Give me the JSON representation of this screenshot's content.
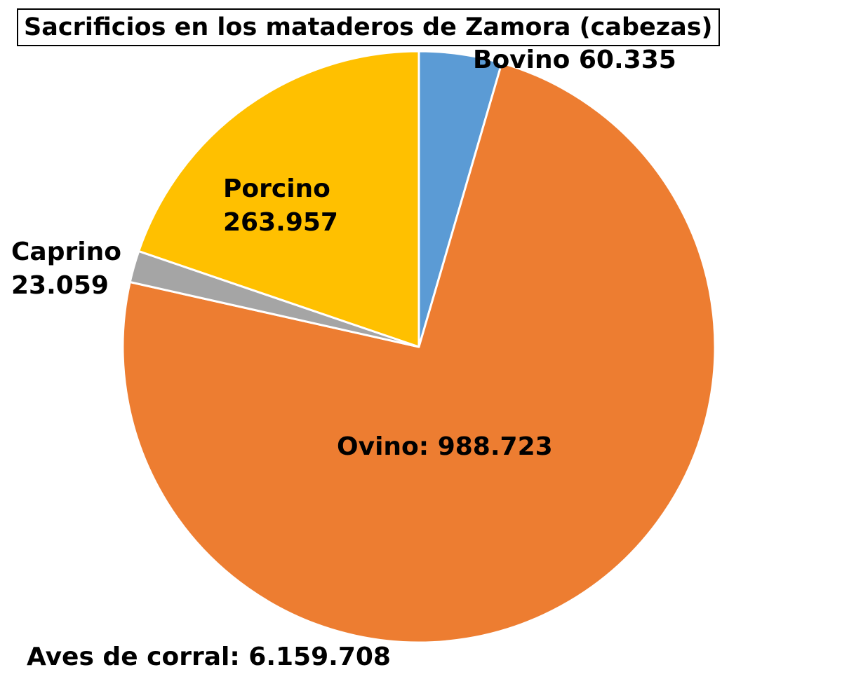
{
  "chart_data": {
    "type": "pie",
    "title": "Sacrificios en los mataderos de Zamora (cabezas)",
    "slices": [
      {
        "name": "Bovino",
        "display_name": "Bovino",
        "value_label": "60.335",
        "value": 60335,
        "color": "#5B9BD5",
        "label_text": "Bovino 60.335"
      },
      {
        "name": "Ovino",
        "display_name": "Ovino:",
        "value_label": "988.723",
        "value": 988723,
        "color": "#ED7D31",
        "label_text": "Ovino: 988.723"
      },
      {
        "name": "Caprino",
        "display_name": "Caprino",
        "value_label": "23.059",
        "value": 23059,
        "color": "#A5A5A5",
        "label_text": "Caprino 23.059"
      },
      {
        "name": "Porcino",
        "display_name": "Porcino",
        "value_label": "263.957",
        "value": 263957,
        "color": "#FFC000",
        "label_text": "Porcino 263.957"
      }
    ],
    "annotation": "Aves de corral: 6.159.708",
    "legend": "none"
  }
}
